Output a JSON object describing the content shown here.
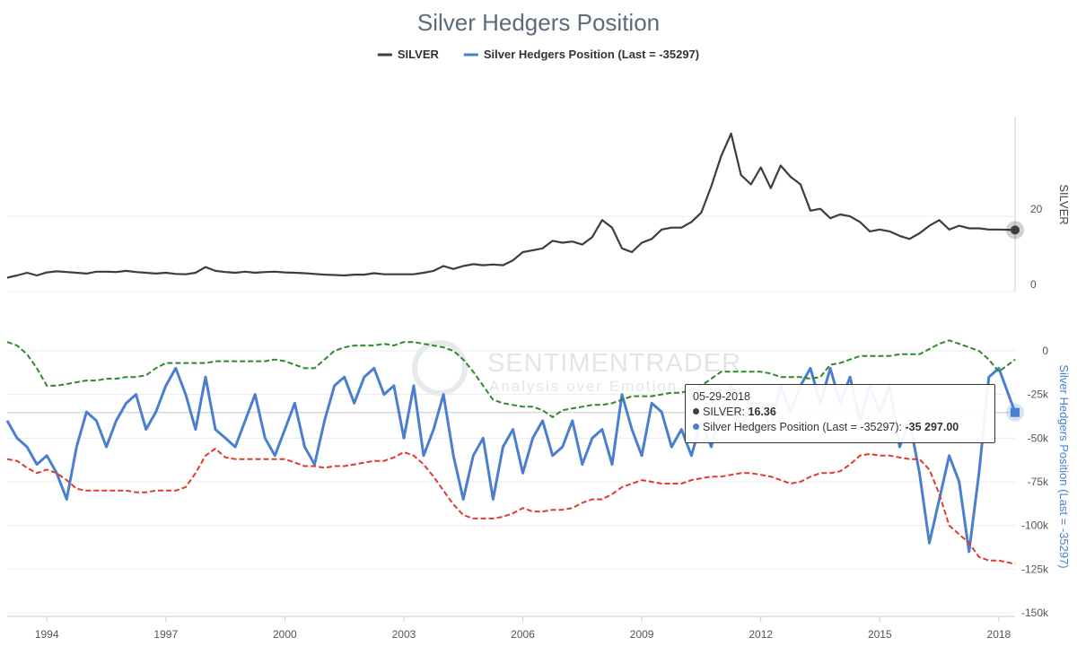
{
  "chart_data": {
    "type": "line",
    "title": "Silver Hedgers Position",
    "xlim": [
      1993.0,
      2018.41
    ],
    "xticks": [
      1994,
      1997,
      2000,
      2003,
      2006,
      2009,
      2012,
      2015,
      2018
    ],
    "ylabel": "SILVER",
    "ylim": [
      0,
      46.5
    ],
    "yticks": [
      0,
      20
    ],
    "y2label": "Silver Hedgers Position (Last = -35297)",
    "y2lim": [
      -152000,
      20000
    ],
    "y2ticks": [
      0,
      {
        "value": -25000,
        "label": "-25k"
      },
      {
        "value": -50000,
        "label": "-50k"
      },
      {
        "value": -75000,
        "label": "-75k"
      },
      {
        "value": -100000,
        "label": "-100k"
      },
      {
        "value": -125000,
        "label": "-125k"
      },
      {
        "value": -150000,
        "label": "-150k"
      }
    ],
    "grid": true,
    "legend": "top",
    "watermark": {
      "brand": "SENTIMENTRADER",
      "tagline": "Analysis over Emotion"
    },
    "x": [
      1993,
      1993.25,
      1993.5,
      1993.75,
      1994,
      1994.25,
      1994.5,
      1994.75,
      1995,
      1995.25,
      1995.5,
      1995.75,
      1996,
      1996.25,
      1996.5,
      1996.75,
      1997,
      1997.25,
      1997.5,
      1997.75,
      1998,
      1998.25,
      1998.5,
      1998.75,
      1999,
      1999.25,
      1999.5,
      1999.75,
      2000,
      2000.25,
      2000.5,
      2000.75,
      2001,
      2001.25,
      2001.5,
      2001.75,
      2002,
      2002.25,
      2002.5,
      2002.75,
      2003,
      2003.25,
      2003.5,
      2003.75,
      2004,
      2004.25,
      2004.5,
      2004.75,
      2005,
      2005.25,
      2005.5,
      2005.75,
      2006,
      2006.25,
      2006.5,
      2006.75,
      2007,
      2007.25,
      2007.5,
      2007.75,
      2008,
      2008.25,
      2008.5,
      2008.75,
      2009,
      2009.25,
      2009.5,
      2009.75,
      2010,
      2010.25,
      2010.5,
      2010.75,
      2011,
      2011.25,
      2011.5,
      2011.75,
      2012,
      2012.25,
      2012.5,
      2012.75,
      2013,
      2013.25,
      2013.5,
      2013.75,
      2014,
      2014.25,
      2014.5,
      2014.75,
      2015,
      2015.25,
      2015.5,
      2015.75,
      2016,
      2016.25,
      2016.5,
      2016.75,
      2017,
      2017.25,
      2017.5,
      2017.75,
      2018,
      2018.41
    ],
    "series": [
      {
        "name": "SILVER",
        "color": "#3d3d3d",
        "axis": "y",
        "width": 2.2,
        "values": [
          3.7,
          4.3,
          5.0,
          4.3,
          5.1,
          5.4,
          5.2,
          5.0,
          4.8,
          5.3,
          5.3,
          5.2,
          5.5,
          5.2,
          5.0,
          4.8,
          5.0,
          4.7,
          4.6,
          5.0,
          6.5,
          5.5,
          5.2,
          5.0,
          5.3,
          5.0,
          5.2,
          5.3,
          5.1,
          5.0,
          4.9,
          4.7,
          4.5,
          4.4,
          4.3,
          4.5,
          4.5,
          4.9,
          4.6,
          4.6,
          4.6,
          4.6,
          5.0,
          5.5,
          6.8,
          6.0,
          6.8,
          7.3,
          7.0,
          7.2,
          7.0,
          8.3,
          10.5,
          11.0,
          11.5,
          13.5,
          13.0,
          13.3,
          12.5,
          14.5,
          19.0,
          17.0,
          11.5,
          10.5,
          13.0,
          14.0,
          16.5,
          17.0,
          17.0,
          18.5,
          21.0,
          28.0,
          36.0,
          42.0,
          31.0,
          28.5,
          33.0,
          27.5,
          33.5,
          30.5,
          28.5,
          21.5,
          22.0,
          19.5,
          20.5,
          20.0,
          18.5,
          16.0,
          16.5,
          16.0,
          14.8,
          14.0,
          15.5,
          17.5,
          19.0,
          16.5,
          17.5,
          16.8,
          16.8,
          16.5,
          16.5,
          16.36
        ]
      },
      {
        "name": "Silver Hedgers Position (Last = -35297)",
        "color": "#4a7fd0",
        "axis": "y2",
        "width": 3,
        "values": [
          -40000,
          -50000,
          -55000,
          -65000,
          -60000,
          -70000,
          -85000,
          -55000,
          -35000,
          -40000,
          -55000,
          -40000,
          -30000,
          -25000,
          -45000,
          -35000,
          -20000,
          -10000,
          -25000,
          -45000,
          -15000,
          -45000,
          -50000,
          -55000,
          -40000,
          -25000,
          -50000,
          -60000,
          -45000,
          -30000,
          -55000,
          -65000,
          -40000,
          -20000,
          -15000,
          -30000,
          -15000,
          -10000,
          -25000,
          -20000,
          -50000,
          -20000,
          -60000,
          -45000,
          -25000,
          -60000,
          -85000,
          -60000,
          -50000,
          -85000,
          -55000,
          -45000,
          -70000,
          -50000,
          -40000,
          -60000,
          -55000,
          -40000,
          -65000,
          -50000,
          -45000,
          -65000,
          -25000,
          -45000,
          -60000,
          -30000,
          -35000,
          -55000,
          -45000,
          -60000,
          -40000,
          -55000,
          -35000,
          -20000,
          -45000,
          -30000,
          -30000,
          -45000,
          -20000,
          -35000,
          -20000,
          -10000,
          -30000,
          -10000,
          -30000,
          -15000,
          -40000,
          -20000,
          -35000,
          -20000,
          -55000,
          -40000,
          -70000,
          -110000,
          -85000,
          -60000,
          -75000,
          -115000,
          -70000,
          -15000,
          -10000,
          -35297
        ]
      },
      {
        "color": "#2f8a2a",
        "axis": "y2",
        "dash": true,
        "width": 2,
        "values": [
          5000,
          3000,
          -2000,
          -10000,
          -20000,
          -20000,
          -19000,
          -18000,
          -17000,
          -17000,
          -16000,
          -16000,
          -15000,
          -15000,
          -14000,
          -10000,
          -7000,
          -7000,
          -7000,
          -7000,
          -7000,
          -6000,
          -6000,
          -6000,
          -6000,
          -6000,
          -6000,
          -5000,
          -6000,
          -8000,
          -10000,
          -10000,
          -5000,
          0,
          2000,
          3000,
          3000,
          3000,
          4000,
          3000,
          5000,
          5000,
          4000,
          3000,
          2000,
          0,
          -5000,
          -12000,
          -20000,
          -28000,
          -30000,
          -31000,
          -32000,
          -32000,
          -34000,
          -38000,
          -34000,
          -33000,
          -32000,
          -31000,
          -31000,
          -30000,
          -28000,
          -26000,
          -26000,
          -26000,
          -25000,
          -24000,
          -24000,
          -22000,
          -20000,
          -16000,
          -12000,
          -12000,
          -12000,
          -12000,
          -12000,
          -13000,
          -15000,
          -15000,
          -15000,
          -16000,
          -15000,
          -8000,
          -7000,
          -5000,
          -3000,
          -3000,
          -3000,
          -3000,
          -2000,
          -2000,
          -2000,
          1000,
          4000,
          6000,
          4000,
          2000,
          0,
          -5000,
          -12000,
          -5000
        ]
      },
      {
        "color": "#e03a2c",
        "axis": "y2",
        "dash": true,
        "width": 2,
        "values": [
          -62000,
          -63000,
          -67000,
          -70000,
          -68000,
          -70000,
          -74000,
          -79000,
          -80000,
          -80000,
          -80000,
          -80000,
          -80000,
          -81000,
          -81000,
          -80000,
          -80000,
          -80000,
          -78000,
          -70000,
          -60000,
          -56000,
          -61000,
          -62000,
          -62000,
          -62000,
          -62000,
          -62000,
          -62000,
          -64000,
          -66000,
          -66000,
          -67000,
          -66000,
          -66000,
          -65000,
          -64000,
          -63000,
          -63000,
          -61000,
          -58000,
          -60000,
          -65000,
          -72000,
          -80000,
          -88000,
          -94000,
          -96000,
          -96000,
          -96000,
          -95000,
          -93000,
          -90000,
          -92000,
          -92000,
          -91000,
          -91000,
          -90000,
          -87000,
          -85000,
          -85000,
          -82000,
          -78000,
          -76000,
          -74000,
          -75000,
          -76000,
          -76000,
          -76000,
          -74000,
          -73000,
          -72000,
          -72000,
          -71000,
          -70000,
          -70000,
          -71000,
          -72000,
          -74000,
          -76000,
          -75000,
          -72000,
          -70000,
          -70000,
          -69000,
          -65000,
          -60000,
          -59000,
          -60000,
          -60000,
          -61000,
          -62000,
          -62000,
          -68000,
          -82000,
          -100000,
          -105000,
          -110000,
          -118000,
          -120000,
          -120000,
          -122000
        ]
      }
    ],
    "tooltip": {
      "title": "05-29-2018",
      "rows": [
        {
          "name": "SILVER",
          "value": 16.36
        },
        {
          "name": "Silver Hedgers Position (Last = -35297)",
          "value": -35297,
          "value_label": "-35 297.00"
        }
      ]
    }
  }
}
